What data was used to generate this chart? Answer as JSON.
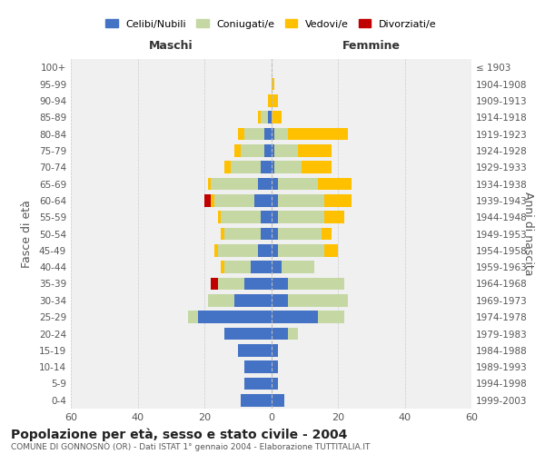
{
  "age_groups": [
    "0-4",
    "5-9",
    "10-14",
    "15-19",
    "20-24",
    "25-29",
    "30-34",
    "35-39",
    "40-44",
    "45-49",
    "50-54",
    "55-59",
    "60-64",
    "65-69",
    "70-74",
    "75-79",
    "80-84",
    "85-89",
    "90-94",
    "95-99",
    "100+"
  ],
  "birth_years": [
    "1999-2003",
    "1994-1998",
    "1989-1993",
    "1984-1988",
    "1979-1983",
    "1974-1978",
    "1969-1973",
    "1964-1968",
    "1959-1963",
    "1954-1958",
    "1949-1953",
    "1944-1948",
    "1939-1943",
    "1934-1938",
    "1929-1933",
    "1924-1928",
    "1919-1923",
    "1914-1918",
    "1909-1913",
    "1904-1908",
    "≤ 1903"
  ],
  "males": {
    "celibe": [
      9,
      8,
      8,
      10,
      14,
      22,
      11,
      8,
      6,
      4,
      3,
      3,
      5,
      4,
      3,
      2,
      2,
      1,
      0,
      0,
      0
    ],
    "coniugato": [
      0,
      0,
      0,
      0,
      0,
      3,
      8,
      8,
      8,
      12,
      11,
      12,
      12,
      14,
      9,
      7,
      6,
      2,
      0,
      0,
      0
    ],
    "vedovo": [
      0,
      0,
      0,
      0,
      0,
      0,
      0,
      0,
      1,
      1,
      1,
      1,
      1,
      1,
      2,
      2,
      2,
      1,
      1,
      0,
      0
    ],
    "divorziato": [
      0,
      0,
      0,
      0,
      0,
      0,
      0,
      2,
      0,
      0,
      0,
      0,
      2,
      0,
      0,
      0,
      0,
      0,
      0,
      0,
      0
    ]
  },
  "females": {
    "nubile": [
      4,
      2,
      2,
      2,
      5,
      14,
      5,
      5,
      3,
      2,
      2,
      2,
      2,
      2,
      1,
      1,
      1,
      0,
      0,
      0,
      0
    ],
    "coniugata": [
      0,
      0,
      0,
      0,
      3,
      8,
      18,
      17,
      10,
      14,
      13,
      14,
      14,
      12,
      8,
      7,
      4,
      0,
      0,
      0,
      0
    ],
    "vedova": [
      0,
      0,
      0,
      0,
      0,
      0,
      0,
      0,
      0,
      4,
      3,
      6,
      8,
      10,
      9,
      10,
      18,
      3,
      2,
      1,
      0
    ],
    "divorziata": [
      0,
      0,
      0,
      0,
      0,
      0,
      0,
      0,
      0,
      0,
      0,
      0,
      0,
      0,
      0,
      0,
      0,
      0,
      0,
      0,
      0
    ]
  },
  "colors": {
    "celibe_nubile": "#4472c4",
    "coniugato_a": "#c5d8a4",
    "vedovo_a": "#ffc000",
    "divorziato_a": "#c00000"
  },
  "xlim": 60,
  "title": "Popolazione per età, sesso e stato civile - 2004",
  "subtitle": "COMUNE DI GONNOSNÒ (OR) - Dati ISTAT 1° gennaio 2004 - Elaborazione TUTTITALIA.IT",
  "ylabel_left": "Fasce di età",
  "ylabel_right": "Anni di nascita",
  "xlabel_left": "Maschi",
  "xlabel_right": "Femmine",
  "legend_labels": [
    "Celibi/Nubili",
    "Coniugati/e",
    "Vedovi/e",
    "Divorziati/e"
  ],
  "bg_color": "#f0f0f0"
}
